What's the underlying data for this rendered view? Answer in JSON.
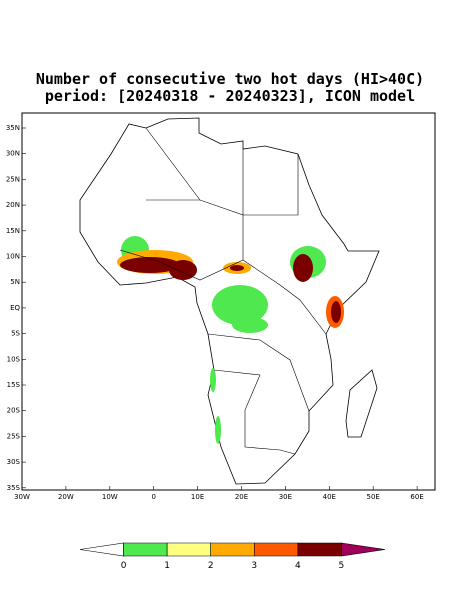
{
  "title": [
    "Number of consecutive two hot days (HI>40C)",
    "period: [20240318 - 20240323], ICON model"
  ],
  "map": {
    "lat_labels": [
      "35N",
      "30N",
      "25N",
      "20N",
      "15N",
      "10N",
      "5N",
      "EQ",
      "5S",
      "10S",
      "15S",
      "20S",
      "25S",
      "30S",
      "35S"
    ],
    "lon_labels": [
      "30W",
      "20W",
      "10W",
      "0",
      "10E",
      "20E",
      "30E",
      "40E",
      "50E",
      "60E"
    ]
  },
  "colorbar": {
    "labels": [
      "0",
      "1",
      "2",
      "3",
      "4",
      "5"
    ],
    "colors": [
      "#ffffff",
      "#4fe84f",
      "#ffff80",
      "#ffaa00",
      "#ff5a00",
      "#7a0000",
      "#a0005a"
    ]
  }
}
